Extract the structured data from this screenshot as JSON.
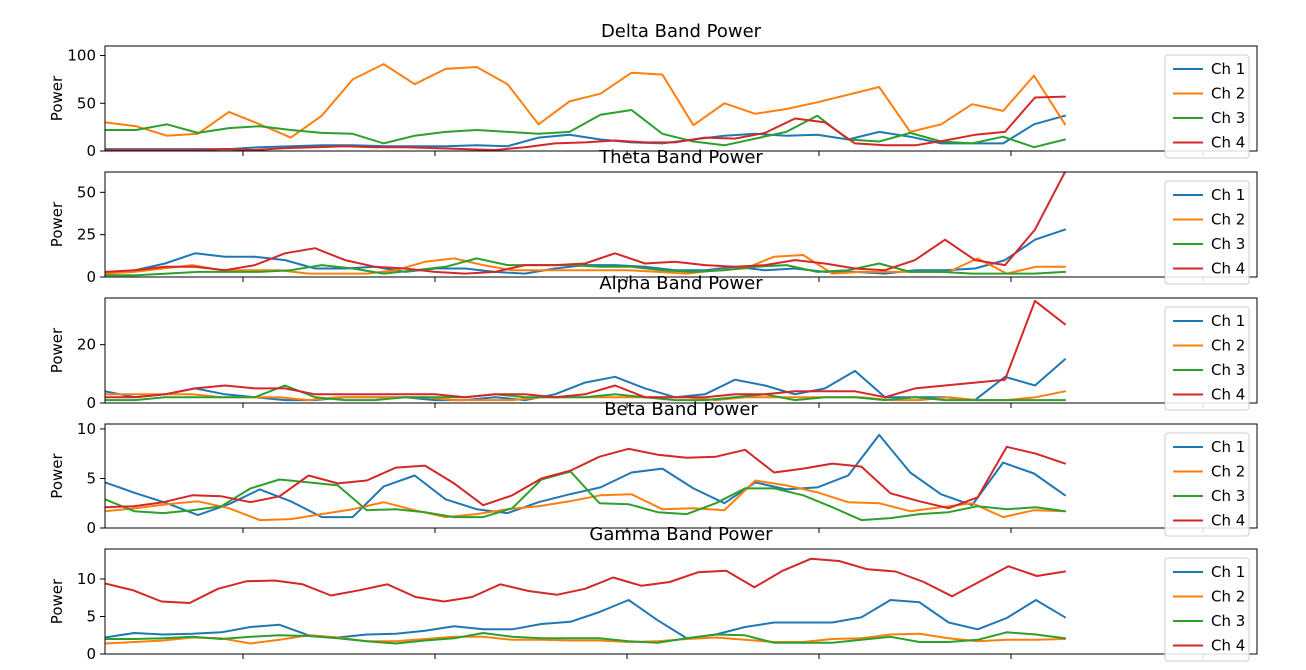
{
  "chart_data": [
    {
      "type": "line",
      "title": "Delta Band Power",
      "ylabel": "Power",
      "xlabel": "",
      "x_ticklabels_shown": false,
      "ylim": [
        0,
        110
      ],
      "yticks": [
        0,
        50,
        100
      ],
      "legend": "right",
      "series": [
        {
          "name": "Ch 1",
          "color": "#1f77b4",
          "values": [
            2,
            2,
            2,
            2,
            2,
            4,
            5,
            6,
            6,
            5,
            5,
            5,
            6,
            5,
            14,
            17,
            12,
            9,
            8,
            12,
            16,
            18,
            16,
            17,
            12,
            20,
            15,
            8,
            8,
            8,
            28,
            37
          ]
        },
        {
          "name": "Ch 2",
          "color": "#ff7f0e",
          "values": [
            30,
            26,
            16,
            18,
            41,
            28,
            14,
            37,
            75,
            91,
            70,
            86,
            88,
            70,
            28,
            52,
            60,
            82,
            80,
            27,
            50,
            39,
            44,
            51,
            59,
            67,
            20,
            28,
            49,
            42,
            79,
            28
          ]
        },
        {
          "name": "Ch 3",
          "color": "#2ca02c",
          "values": [
            22,
            22,
            28,
            19,
            24,
            26,
            22,
            19,
            18,
            8,
            16,
            20,
            22,
            20,
            18,
            20,
            38,
            43,
            18,
            10,
            6,
            13,
            20,
            37,
            12,
            10,
            19,
            10,
            8,
            15,
            4,
            12
          ]
        },
        {
          "name": "Ch 4",
          "color": "#d62728",
          "values": [
            1,
            1,
            1,
            1,
            2,
            1,
            3,
            4,
            5,
            4,
            4,
            3,
            2,
            1,
            4,
            8,
            9,
            11,
            9,
            9,
            14,
            13,
            19,
            34,
            30,
            8,
            6,
            6,
            11,
            17,
            20,
            56,
            57
          ]
        }
      ]
    },
    {
      "type": "line",
      "title": "Theta Band Power",
      "ylabel": "Power",
      "xlabel": "",
      "x_ticklabels_shown": false,
      "ylim": [
        0,
        62
      ],
      "yticks": [
        0,
        25,
        50
      ],
      "legend": "right",
      "series": [
        {
          "name": "Ch 1",
          "color": "#1f77b4",
          "values": [
            2,
            4,
            8,
            14,
            12,
            12,
            10,
            5,
            5,
            6,
            3,
            5,
            5,
            3,
            2,
            5,
            7,
            7,
            6,
            4,
            4,
            6,
            4,
            5,
            3,
            3,
            2,
            4,
            4,
            5,
            10,
            22,
            28
          ]
        },
        {
          "name": "Ch 2",
          "color": "#ff7f0e",
          "values": [
            2,
            3,
            5,
            7,
            4,
            4,
            4,
            2,
            2,
            2,
            4,
            9,
            11,
            7,
            4,
            4,
            4,
            4,
            4,
            3,
            2,
            4,
            5,
            12,
            13,
            2,
            3,
            3,
            3,
            3,
            11,
            2,
            6,
            6
          ]
        },
        {
          "name": "Ch 3",
          "color": "#2ca02c",
          "values": [
            1,
            1,
            2,
            3,
            3,
            3,
            4,
            7,
            5,
            2,
            4,
            6,
            11,
            7,
            7,
            7,
            6,
            6,
            4,
            3,
            4,
            6,
            7,
            3,
            4,
            8,
            3,
            3,
            2,
            2,
            2,
            3
          ]
        },
        {
          "name": "Ch 4",
          "color": "#d62728",
          "values": [
            3,
            4,
            6,
            6,
            4,
            7,
            14,
            17,
            10,
            6,
            5,
            3,
            2,
            3,
            7,
            7,
            8,
            14,
            8,
            9,
            7,
            6,
            7,
            10,
            8,
            5,
            4,
            10,
            22,
            10,
            7,
            28,
            62
          ]
        }
      ]
    },
    {
      "type": "line",
      "title": "Alpha Band Power",
      "ylabel": "Power",
      "xlabel": "",
      "x_ticklabels_shown": false,
      "ylim": [
        0,
        36
      ],
      "yticks": [
        0,
        20
      ],
      "legend": "right",
      "series": [
        {
          "name": "Ch 1",
          "color": "#1f77b4",
          "values": [
            4,
            2,
            3,
            5,
            3,
            2,
            1,
            1,
            2,
            2,
            2,
            1,
            1,
            2,
            1,
            3,
            7,
            9,
            5,
            2,
            3,
            8,
            6,
            3,
            5,
            11,
            2,
            2,
            2,
            1,
            9,
            6,
            15
          ]
        },
        {
          "name": "Ch 2",
          "color": "#ff7f0e",
          "values": [
            3,
            3,
            3,
            3,
            2,
            2,
            2,
            1,
            2,
            2,
            2,
            2,
            1,
            1,
            1,
            2,
            2,
            2,
            2,
            2,
            2,
            1,
            2,
            2,
            2,
            2,
            2,
            1,
            1,
            2,
            1,
            1,
            2,
            4
          ]
        },
        {
          "name": "Ch 3",
          "color": "#2ca02c",
          "values": [
            1,
            1,
            2,
            2,
            2,
            2,
            6,
            2,
            1,
            1,
            2,
            2,
            2,
            3,
            2,
            2,
            2,
            3,
            2,
            1,
            1,
            2,
            3,
            1,
            2,
            2,
            1,
            2,
            1,
            1,
            1,
            1,
            1
          ]
        },
        {
          "name": "Ch 4",
          "color": "#d62728",
          "values": [
            2,
            2,
            3,
            5,
            6,
            5,
            5,
            3,
            3,
            3,
            3,
            3,
            2,
            3,
            3,
            2,
            3,
            6,
            2,
            2,
            2,
            3,
            3,
            4,
            4,
            4,
            2,
            5,
            6,
            7,
            8,
            35,
            27
          ]
        }
      ]
    },
    {
      "type": "line",
      "title": "Beta Band Power",
      "ylabel": "Power",
      "xlabel": "",
      "x_ticklabels_shown": false,
      "ylim": [
        0,
        10.5
      ],
      "yticks": [
        0,
        5,
        10
      ],
      "legend": "right",
      "series": [
        {
          "name": "Ch 1",
          "color": "#1f77b4",
          "values": [
            4.6,
            3.5,
            2.5,
            1.3,
            2.4,
            3.9,
            2.7,
            1.1,
            1.1,
            4.2,
            5.3,
            2.9,
            1.9,
            1.5,
            2.6,
            3.4,
            4.1,
            5.6,
            6.0,
            4.0,
            2.5,
            4.6,
            3.9,
            4.1,
            5.3,
            9.4,
            5.6,
            3.4,
            2.3,
            6.6,
            5.5,
            3.3
          ]
        },
        {
          "name": "Ch 2",
          "color": "#ff7f0e",
          "values": [
            1.7,
            2.0,
            2.4,
            2.7,
            2.0,
            0.8,
            0.9,
            1.4,
            1.9,
            2.6,
            1.8,
            1.1,
            1.4,
            1.9,
            2.2,
            2.7,
            3.3,
            3.4,
            1.9,
            2.0,
            1.8,
            4.8,
            4.3,
            3.6,
            2.6,
            2.5,
            1.7,
            2.1,
            2.5,
            1.1,
            1.8,
            1.7
          ]
        },
        {
          "name": "Ch 3",
          "color": "#2ca02c",
          "values": [
            2.9,
            1.7,
            1.5,
            1.8,
            2.2,
            4.0,
            4.9,
            4.6,
            4.3,
            1.8,
            1.9,
            1.6,
            1.1,
            1.1,
            2.0,
            4.9,
            5.7,
            2.5,
            2.4,
            1.6,
            1.4,
            2.5,
            4.0,
            4.0,
            3.3,
            2.1,
            0.8,
            1.0,
            1.4,
            1.6,
            2.2,
            1.9,
            2.1,
            1.7
          ]
        },
        {
          "name": "Ch 4",
          "color": "#d62728",
          "values": [
            2.1,
            2.2,
            2.6,
            3.3,
            3.2,
            2.6,
            3.2,
            5.3,
            4.5,
            4.8,
            6.1,
            6.3,
            4.5,
            2.3,
            3.3,
            5.0,
            5.8,
            7.2,
            8.0,
            7.4,
            7.1,
            7.2,
            7.9,
            5.6,
            6.0,
            6.5,
            6.2,
            3.5,
            2.7,
            2.0,
            3.1,
            8.2,
            7.5,
            6.5
          ]
        }
      ]
    },
    {
      "type": "line",
      "title": "Gamma Band Power",
      "ylabel": "Power",
      "xlabel": "",
      "x_ticklabels_shown": false,
      "ylim": [
        0,
        14
      ],
      "yticks": [
        0,
        5,
        10
      ],
      "legend": "right",
      "series": [
        {
          "name": "Ch 1",
          "color": "#1f77b4",
          "values": [
            2.2,
            2.8,
            2.6,
            2.7,
            2.9,
            3.6,
            3.9,
            2.5,
            2.2,
            2.6,
            2.7,
            3.1,
            3.7,
            3.3,
            3.3,
            4.0,
            4.3,
            5.6,
            7.2,
            4.5,
            2.1,
            2.6,
            3.6,
            4.2,
            4.2,
            4.2,
            4.9,
            7.2,
            6.9,
            4.2,
            3.3,
            4.8,
            7.2,
            4.9
          ]
        },
        {
          "name": "Ch 2",
          "color": "#ff7f0e",
          "values": [
            1.4,
            1.6,
            1.8,
            2.2,
            2.1,
            1.4,
            1.9,
            2.5,
            2.2,
            1.7,
            1.7,
            2.0,
            2.3,
            2.3,
            1.9,
            1.9,
            1.8,
            1.8,
            1.6,
            1.7,
            2.0,
            2.2,
            1.9,
            1.6,
            1.6,
            2.0,
            2.1,
            2.6,
            2.7,
            2.1,
            1.7,
            1.9,
            1.9,
            2.0
          ]
        },
        {
          "name": "Ch 3",
          "color": "#2ca02c",
          "values": [
            2.0,
            2.0,
            2.1,
            2.3,
            2.0,
            2.3,
            2.5,
            2.4,
            2.1,
            1.7,
            1.4,
            1.8,
            2.1,
            2.8,
            2.3,
            2.1,
            2.1,
            2.1,
            1.7,
            1.5,
            2.1,
            2.6,
            2.5,
            1.5,
            1.5,
            1.5,
            1.9,
            2.3,
            1.6,
            1.6,
            1.9,
            2.9,
            2.6,
            2.1
          ]
        },
        {
          "name": "Ch 4",
          "color": "#d62728",
          "values": [
            9.4,
            8.5,
            7.0,
            6.8,
            8.7,
            9.7,
            9.8,
            9.3,
            7.8,
            8.5,
            9.3,
            7.6,
            7.0,
            7.6,
            9.3,
            8.4,
            7.9,
            8.7,
            10.2,
            9.1,
            9.6,
            10.9,
            11.1,
            8.9,
            11.1,
            12.7,
            12.4,
            11.3,
            11.0,
            9.6,
            7.7,
            9.7,
            11.7,
            10.4,
            11.0
          ]
        }
      ]
    }
  ]
}
